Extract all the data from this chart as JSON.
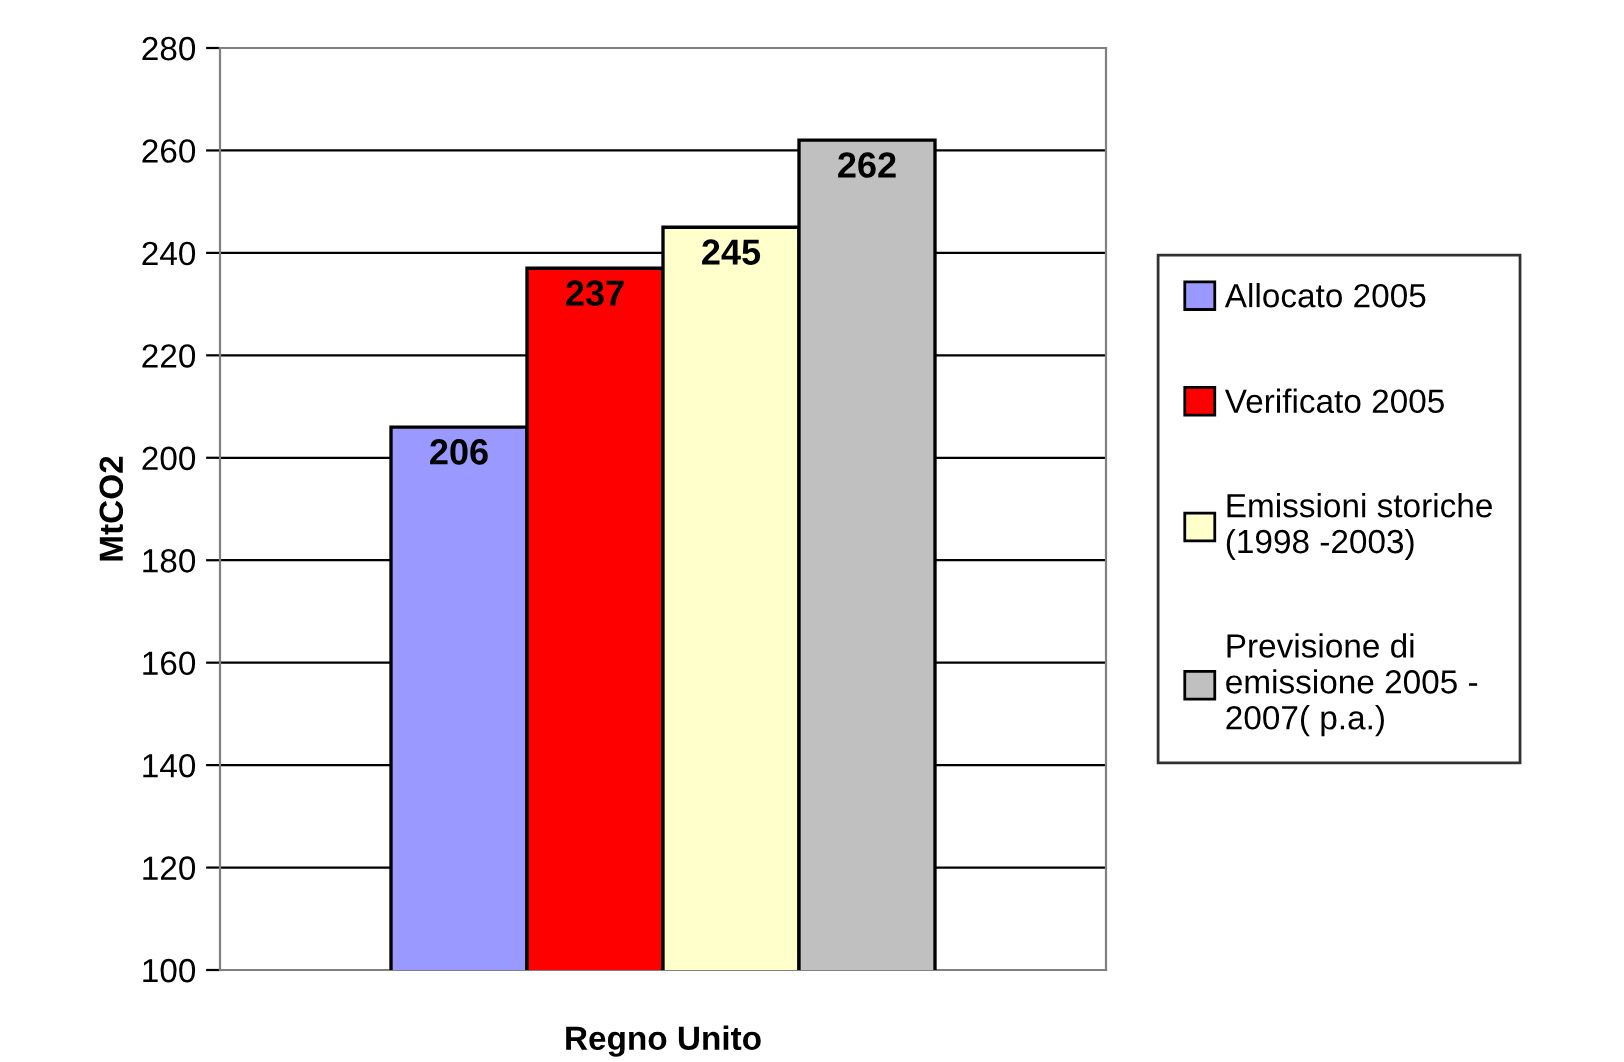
{
  "chart_data": {
    "type": "bar",
    "ylabel": "MtCO2",
    "categories": [
      "Regno Unito"
    ],
    "series": [
      {
        "name": "Allocato 2005",
        "color": "#9999ff",
        "values": [
          206
        ]
      },
      {
        "name": "Verificato 2005",
        "color": "#ff0000",
        "values": [
          237
        ]
      },
      {
        "name": "Emissioni storiche\n(1998 -2003)",
        "color": "#ffffcc",
        "values": [
          245
        ]
      },
      {
        "name": "Previsione di\nemissione 2005 -\n2007( p.a.)",
        "color": "#c0c0c0",
        "values": [
          262
        ]
      }
    ],
    "ylim": [
      100,
      280
    ],
    "yticks": [
      100,
      120,
      140,
      160,
      180,
      200,
      220,
      240,
      260,
      280
    ],
    "grid": "y",
    "legend": "right",
    "data_labels": true
  }
}
